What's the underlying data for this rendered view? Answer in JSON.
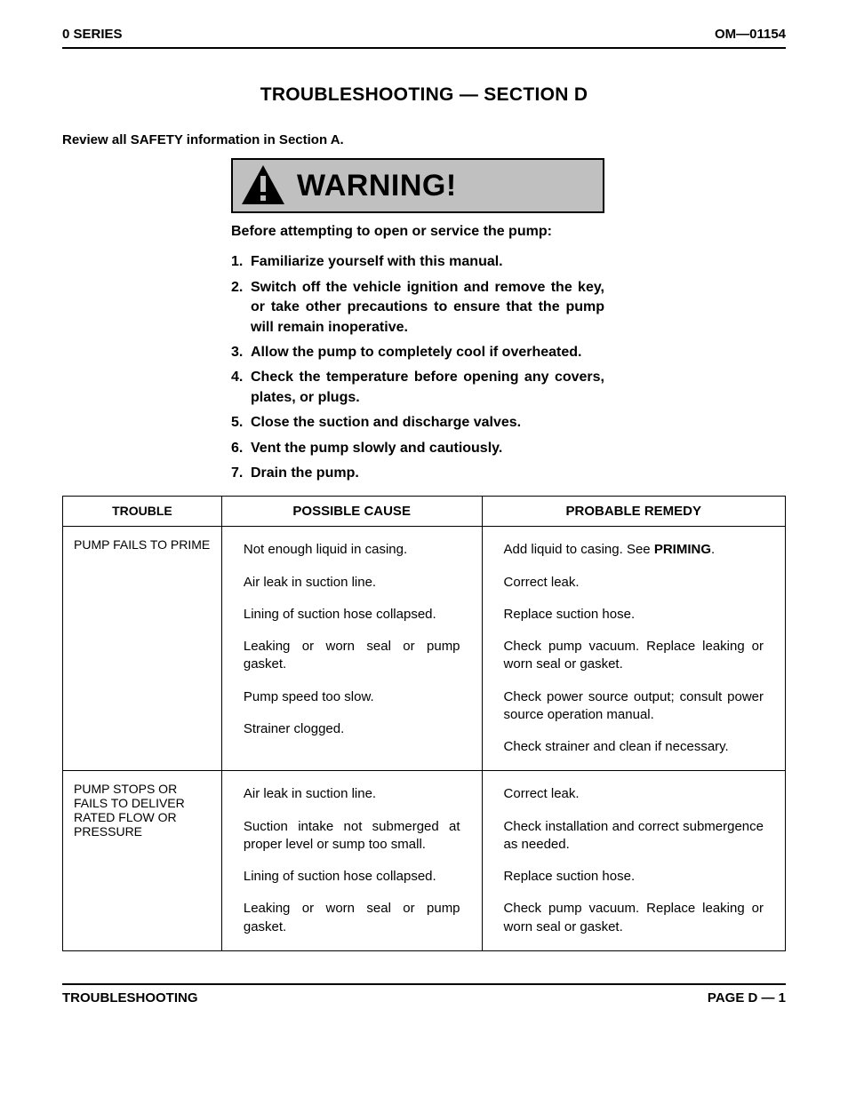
{
  "header": {
    "left": "0 SERIES",
    "right": "OM—01154"
  },
  "title": "TROUBLESHOOTING — SECTION D",
  "safety_note": "Review all SAFETY information in Section A.",
  "warning": {
    "banner_text": "WARNING!",
    "intro": "Before attempting to open or service the pump:",
    "items": [
      "Familiarize yourself with this manual.",
      "Switch off the vehicle ignition and remove the key, or take other precautions to ensure that the pump will remain inoperative.",
      "Allow the pump to completely cool if overheated.",
      "Check the temperature before opening any covers, plates, or plugs.",
      "Close the suction and discharge valves.",
      "Vent the pump slowly and cautiously.",
      "Drain the pump."
    ],
    "icon_fill": "#000000",
    "banner_bg": "#c0c0c0"
  },
  "table": {
    "headers": {
      "trouble": "TROUBLE",
      "cause": "POSSIBLE CAUSE",
      "remedy": "PROBABLE REMEDY"
    },
    "groups": [
      {
        "trouble": "PUMP FAILS TO PRIME",
        "rows": [
          {
            "cause": "Not enough liquid in casing.",
            "remedy_pre": "Add liquid to casing. See ",
            "remedy_strong": "PRIMING",
            "remedy_post": "."
          },
          {
            "cause": "Air leak in suction line.",
            "remedy": "Correct leak."
          },
          {
            "cause": "Lining of suction hose collapsed.",
            "remedy": "Replace suction hose."
          },
          {
            "cause": "Leaking or worn seal or pump gasket.",
            "remedy": "Check pump vacuum. Replace leaking or worn seal or gasket."
          },
          {
            "cause": "Pump speed too slow.",
            "remedy": "Check power source output; consult power source operation manual."
          },
          {
            "cause": "Strainer clogged.",
            "remedy": "Check strainer and clean if necessary."
          }
        ]
      },
      {
        "trouble": "PUMP STOPS OR FAILS TO DELIVER RATED FLOW OR PRESSURE",
        "rows": [
          {
            "cause": "Air leak in suction line.",
            "remedy": "Correct leak."
          },
          {
            "cause": "Suction intake not submerged at proper level or sump too small.",
            "remedy": "Check installation and correct submergence as needed."
          },
          {
            "cause": "Lining of suction hose collapsed.",
            "remedy": "Replace suction hose."
          },
          {
            "cause": "Leaking or worn seal or pump gasket.",
            "remedy": "Check pump vacuum. Replace leaking or worn seal or gasket."
          }
        ]
      }
    ]
  },
  "footer": {
    "left": "TROUBLESHOOTING",
    "right": "PAGE D — 1"
  }
}
